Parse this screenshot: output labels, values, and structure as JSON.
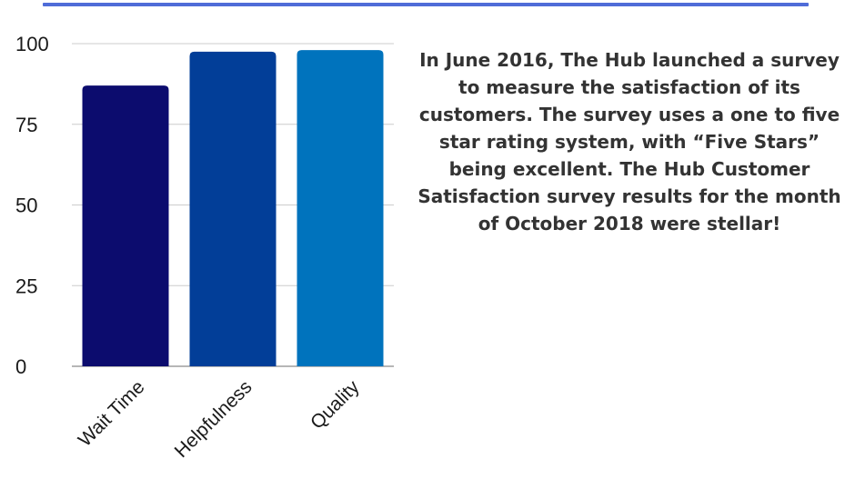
{
  "colors": {
    "rule": "#4f6cd8",
    "grid": "#cccccc",
    "axis": "#9e9e9e",
    "text": "#333333"
  },
  "description": "In June 2016, The Hub launched a survey to measure the satisfaction of its customers.  The survey  uses a one to five star rating system, with “Five Stars” being excellent. The Hub Customer Satisfaction survey results for the month of October 2018 were stellar!",
  "chart_data": {
    "type": "bar",
    "title": "",
    "xlabel": "",
    "ylabel": "",
    "categories": [
      "Wait Time",
      "Helpfulness",
      "Quality"
    ],
    "values": [
      87,
      97.5,
      98
    ],
    "bar_colors": [
      "#0c0c6e",
      "#023e98",
      "#0073bd"
    ],
    "ylim": [
      0,
      100
    ],
    "yticks": [
      "0",
      "25",
      "50",
      "75",
      "100"
    ],
    "ytick_values": [
      0,
      25,
      50,
      75,
      100
    ],
    "grid": true,
    "legend": "none"
  }
}
